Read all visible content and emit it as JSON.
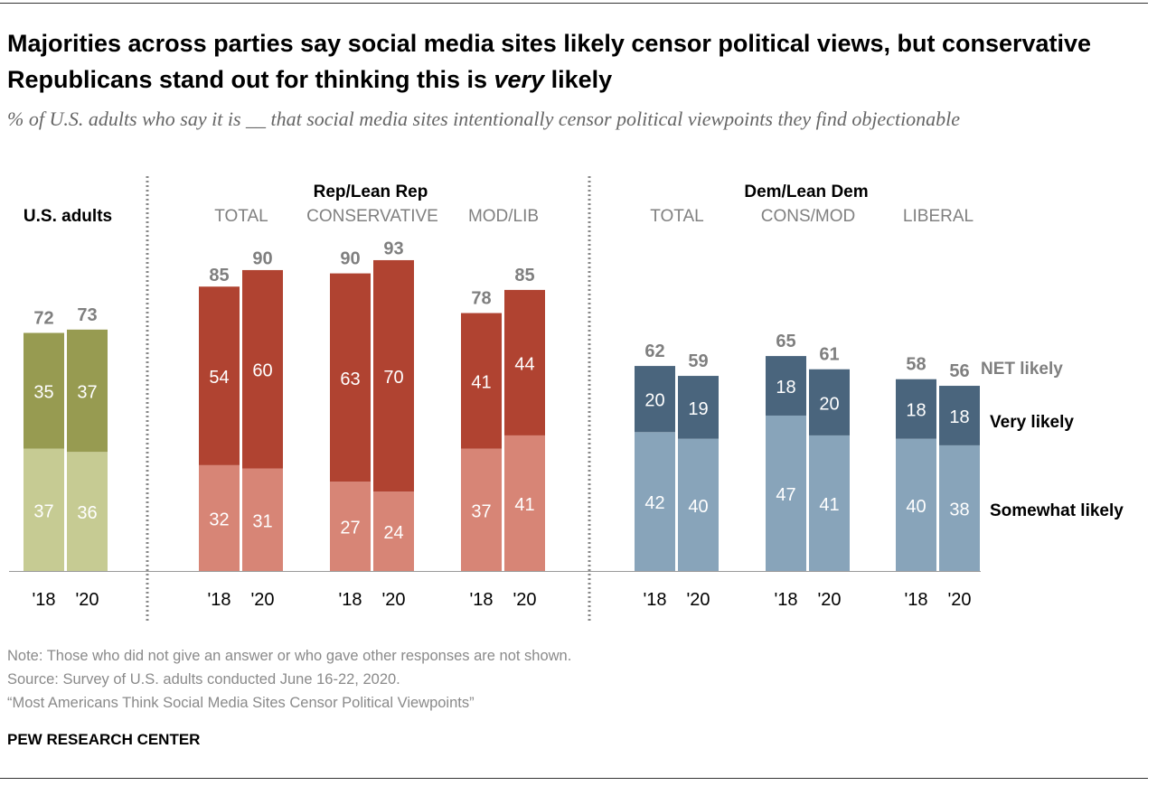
{
  "title_parts": [
    "Majorities across parties say social media sites likely censor political views, but conservative Republicans stand out for thinking this is ",
    "very",
    " likely"
  ],
  "subtitle": "% of U.S. adults who say it is __ that social media sites intentionally censor political viewpoints they find objectionable",
  "notes": [
    "Note: Those who did not give an answer or who gave other responses are not shown.",
    "Source: Survey of U.S. adults conducted June 16-22, 2020.",
    "“Most Americans Think Social Media Sites Censor Political Viewpoints”"
  ],
  "brand": "PEW RESEARCH CENTER",
  "chart_data": {
    "type": "bar",
    "stacked": true,
    "super_groups": [
      {
        "label": "U.S. adults",
        "groups": [
          0
        ]
      },
      {
        "label": "Rep/Lean Rep",
        "groups": [
          1,
          2,
          3
        ]
      },
      {
        "label": "Dem/Lean Dem",
        "groups": [
          4,
          5,
          6
        ]
      }
    ],
    "groups": [
      {
        "label": "",
        "years": [
          "'18",
          "'20"
        ],
        "somewhat": [
          37,
          36
        ],
        "very": [
          35,
          37
        ],
        "net": [
          72,
          73
        ],
        "colors": {
          "very": "#979b51",
          "somewhat": "#c6cb93"
        }
      },
      {
        "label": "TOTAL",
        "years": [
          "'18",
          "'20"
        ],
        "somewhat": [
          32,
          31
        ],
        "very": [
          54,
          60
        ],
        "net": [
          85,
          90
        ],
        "colors": {
          "very": "#b04331",
          "somewhat": "#d78576"
        }
      },
      {
        "label": "CONSERVATIVE",
        "years": [
          "'18",
          "'20"
        ],
        "somewhat": [
          27,
          24
        ],
        "very": [
          63,
          70
        ],
        "net": [
          90,
          93
        ],
        "colors": {
          "very": "#b04331",
          "somewhat": "#d78576"
        }
      },
      {
        "label": "MOD/LIB",
        "years": [
          "'18",
          "'20"
        ],
        "somewhat": [
          37,
          41
        ],
        "very": [
          41,
          44
        ],
        "net": [
          78,
          85
        ],
        "colors": {
          "very": "#b04331",
          "somewhat": "#d78576"
        }
      },
      {
        "label": "TOTAL",
        "years": [
          "'18",
          "'20"
        ],
        "somewhat": [
          42,
          40
        ],
        "very": [
          20,
          19
        ],
        "net": [
          62,
          59
        ],
        "colors": {
          "very": "#4a657d",
          "somewhat": "#88a4ba"
        }
      },
      {
        "label": "CONS/MOD",
        "years": [
          "'18",
          "'20"
        ],
        "somewhat": [
          47,
          41
        ],
        "very": [
          18,
          20
        ],
        "net": [
          65,
          61
        ],
        "colors": {
          "very": "#4a657d",
          "somewhat": "#88a4ba"
        }
      },
      {
        "label": "LIBERAL",
        "years": [
          "'18",
          "'20"
        ],
        "somewhat": [
          40,
          38
        ],
        "very": [
          18,
          18
        ],
        "net": [
          58,
          56
        ],
        "colors": {
          "very": "#4a657d",
          "somewhat": "#88a4ba"
        }
      }
    ],
    "legend": {
      "net": "NET likely",
      "very": "Very likely",
      "somewhat": "Somewhat likely"
    },
    "ylim": [
      0,
      100
    ],
    "grid": false
  }
}
